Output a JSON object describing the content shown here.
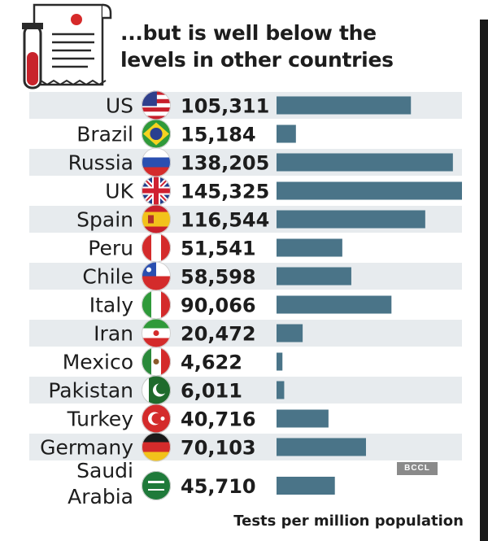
{
  "header": {
    "title_line1": "...but is well below the",
    "title_line2": "levels in other countries"
  },
  "footer": {
    "label": "Tests per million population"
  },
  "watermark": "BCCL",
  "colors": {
    "bar": "#4a7488",
    "stripe": "#e7ebee",
    "text": "#1d1d1d"
  },
  "chart_data": {
    "type": "bar",
    "orientation": "horizontal",
    "categories": [
      "US",
      "Brazil",
      "Russia",
      "UK",
      "Spain",
      "Peru",
      "Chile",
      "Italy",
      "Iran",
      "Mexico",
      "Pakistan",
      "Turkey",
      "Germany",
      "Saudi Arabia"
    ],
    "category_lines": [
      [
        "US"
      ],
      [
        "Brazil"
      ],
      [
        "Russia"
      ],
      [
        "UK"
      ],
      [
        "Spain"
      ],
      [
        "Peru"
      ],
      [
        "Chile"
      ],
      [
        "Italy"
      ],
      [
        "Iran"
      ],
      [
        "Mexico"
      ],
      [
        "Pakistan"
      ],
      [
        "Turkey"
      ],
      [
        "Germany"
      ],
      [
        "Saudi",
        "Arabia"
      ]
    ],
    "values": [
      105311,
      15184,
      138205,
      145325,
      116544,
      51541,
      58598,
      90066,
      20472,
      4622,
      6011,
      40716,
      70103,
      45710
    ],
    "value_labels": [
      "105,311",
      "15,184",
      "138,205",
      "145,325",
      "116,544",
      "51,541",
      "58,598",
      "90,066",
      "20,472",
      "4,622",
      "6,011",
      "40,716",
      "70,103",
      "45,710"
    ],
    "flag_icons": [
      "us-flag-icon",
      "brazil-flag-icon",
      "russia-flag-icon",
      "uk-flag-icon",
      "spain-flag-icon",
      "peru-flag-icon",
      "chile-flag-icon",
      "italy-flag-icon",
      "iran-flag-icon",
      "mexico-flag-icon",
      "pakistan-flag-icon",
      "turkey-flag-icon",
      "germany-flag-icon",
      "saudi-arabia-flag-icon"
    ],
    "xlim": [
      0,
      145325
    ],
    "xlabel": "Tests per million population",
    "ylabel": "",
    "grid": false,
    "alternating_row_stripes": true
  }
}
